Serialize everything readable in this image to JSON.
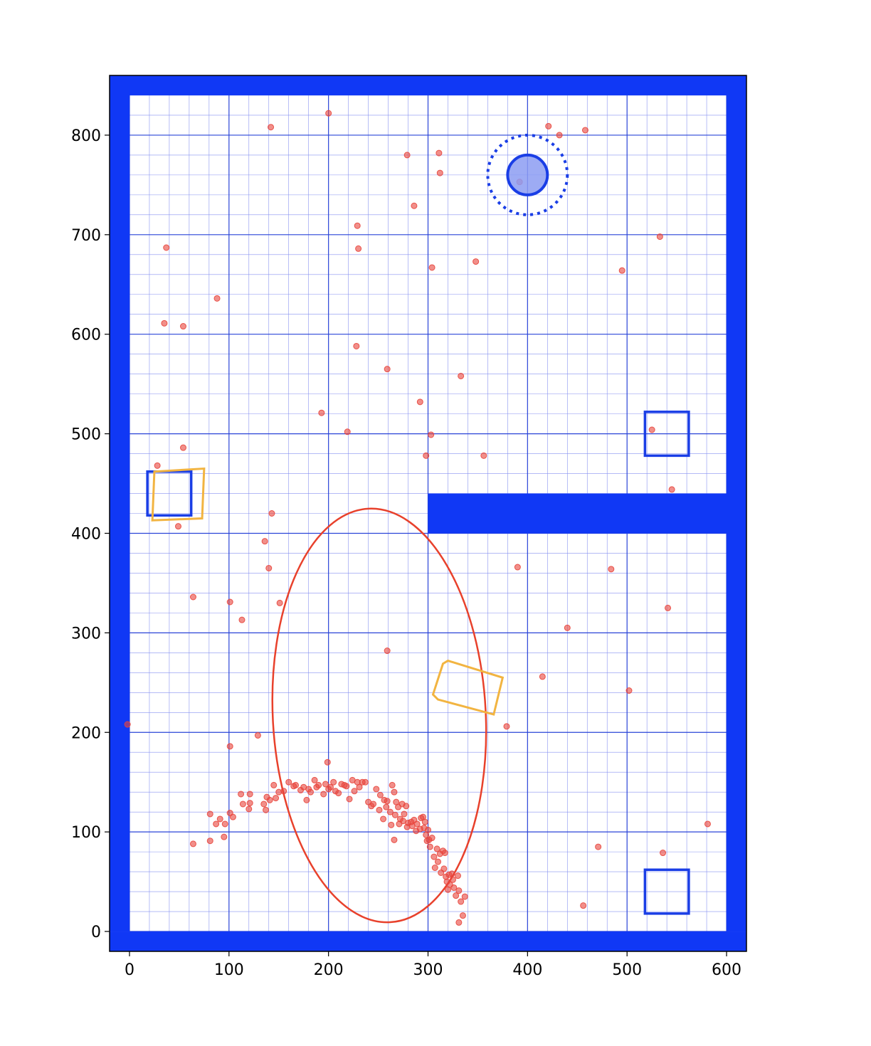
{
  "chart_data": {
    "type": "scatter",
    "title": "",
    "xlabel": "",
    "ylabel": "",
    "xlim": [
      -20,
      620
    ],
    "ylim": [
      -20,
      860
    ],
    "x_ticks": [
      0,
      100,
      200,
      300,
      400,
      500,
      600
    ],
    "y_ticks": [
      0,
      100,
      200,
      300,
      400,
      500,
      600,
      700,
      800
    ],
    "minor_grid_step": 20,
    "grid": true,
    "colors": {
      "wall": "#1038f5",
      "major_grid": "#2a44d8",
      "minor_grid": "#8892f0",
      "particles": "#e8453c",
      "ellipse": "#e8412c",
      "estimate_box": "#f2b441",
      "target_box": "#1a3ee6",
      "robot": "#1a3ee6",
      "robot_fill": "#8c9cf2"
    },
    "walls": [
      {
        "x0": -20,
        "y0": 0,
        "x1": 0,
        "y1": 860
      },
      {
        "x0": 600,
        "y0": 0,
        "x1": 620,
        "y1": 860
      },
      {
        "x0": -20,
        "y0": -20,
        "x1": 620,
        "y1": 0
      },
      {
        "x0": -20,
        "y0": 840,
        "x1": 620,
        "y1": 860
      },
      {
        "x0": 300,
        "y0": 400,
        "x1": 600,
        "y1": 440
      }
    ],
    "target_boxes": [
      {
        "x0": 18,
        "y0": 418,
        "x1": 62,
        "y1": 462
      },
      {
        "x0": 518,
        "y0": 478,
        "x1": 562,
        "y1": 522
      },
      {
        "x0": 518,
        "y0": 18,
        "x1": 562,
        "y1": 62
      }
    ],
    "estimate_boxes": [
      {
        "points": [
          [
            23,
            413
          ],
          [
            73,
            415
          ],
          [
            75,
            465
          ],
          [
            25,
            462
          ]
        ]
      },
      {
        "points": [
          [
            305,
            238
          ],
          [
            315,
            269
          ],
          [
            320,
            272
          ],
          [
            375,
            255
          ],
          [
            366,
            218
          ],
          [
            310,
            233
          ]
        ]
      }
    ],
    "robot": {
      "x": 400,
      "y": 760,
      "r": 20,
      "sensor_r": 40
    },
    "ellipse": {
      "cx": 251,
      "cy": 217,
      "rx": 107,
      "ry": 208,
      "angle_deg": -3
    },
    "particles": [
      [
        200,
        822
      ],
      [
        142,
        808
      ],
      [
        421,
        809
      ],
      [
        458,
        805
      ],
      [
        432,
        800
      ],
      [
        279,
        780
      ],
      [
        311,
        782
      ],
      [
        312,
        762
      ],
      [
        392,
        753
      ],
      [
        286,
        729
      ],
      [
        229,
        709
      ],
      [
        37,
        687
      ],
      [
        230,
        686
      ],
      [
        533,
        698
      ],
      [
        348,
        673
      ],
      [
        304,
        667
      ],
      [
        495,
        664
      ],
      [
        88,
        636
      ],
      [
        35,
        611
      ],
      [
        54,
        608
      ],
      [
        228,
        588
      ],
      [
        259,
        565
      ],
      [
        333,
        558
      ],
      [
        292,
        532
      ],
      [
        193,
        521
      ],
      [
        219,
        502
      ],
      [
        303,
        499
      ],
      [
        525,
        504
      ],
      [
        54,
        486
      ],
      [
        298,
        478
      ],
      [
        356,
        478
      ],
      [
        28,
        468
      ],
      [
        545,
        444
      ],
      [
        143,
        420
      ],
      [
        49,
        407
      ],
      [
        136,
        392
      ],
      [
        140,
        365
      ],
      [
        390,
        366
      ],
      [
        484,
        364
      ],
      [
        64,
        336
      ],
      [
        101,
        331
      ],
      [
        151,
        330
      ],
      [
        541,
        325
      ],
      [
        113,
        313
      ],
      [
        440,
        305
      ],
      [
        259,
        282
      ],
      [
        415,
        256
      ],
      [
        502,
        242
      ],
      [
        379,
        206
      ],
      [
        -2,
        208
      ],
      [
        129,
        197
      ],
      [
        101,
        186
      ],
      [
        199,
        170
      ],
      [
        160,
        150
      ],
      [
        167,
        147
      ],
      [
        175,
        145
      ],
      [
        180,
        143
      ],
      [
        186,
        152
      ],
      [
        190,
        147
      ],
      [
        197,
        148
      ],
      [
        202,
        145
      ],
      [
        207,
        141
      ],
      [
        213,
        148
      ],
      [
        218,
        146
      ],
      [
        224,
        152
      ],
      [
        229,
        150
      ],
      [
        234,
        150
      ],
      [
        240,
        130
      ],
      [
        245,
        128
      ],
      [
        248,
        143
      ],
      [
        252,
        137
      ],
      [
        256,
        132
      ],
      [
        258,
        125
      ],
      [
        262,
        120
      ],
      [
        264,
        147
      ],
      [
        266,
        140
      ],
      [
        268,
        130
      ],
      [
        270,
        125
      ],
      [
        272,
        113
      ],
      [
        274,
        128
      ],
      [
        276,
        118
      ],
      [
        278,
        126
      ],
      [
        280,
        109
      ],
      [
        283,
        110
      ],
      [
        286,
        112
      ],
      [
        289,
        108
      ],
      [
        292,
        103
      ],
      [
        295,
        115
      ],
      [
        297,
        110
      ],
      [
        298,
        97
      ],
      [
        299,
        91
      ],
      [
        300,
        102
      ],
      [
        302,
        85
      ],
      [
        304,
        94
      ],
      [
        306,
        75
      ],
      [
        309,
        83
      ],
      [
        310,
        70
      ],
      [
        312,
        78
      ],
      [
        315,
        81
      ],
      [
        316,
        63
      ],
      [
        318,
        55
      ],
      [
        319,
        50
      ],
      [
        320,
        42
      ],
      [
        322,
        47
      ],
      [
        324,
        58
      ],
      [
        326,
        44
      ],
      [
        328,
        36
      ],
      [
        330,
        56
      ],
      [
        331,
        41
      ],
      [
        333,
        30
      ],
      [
        335,
        16
      ],
      [
        337,
        35
      ],
      [
        331,
        9
      ],
      [
        150,
        140
      ],
      [
        145,
        147
      ],
      [
        141,
        132
      ],
      [
        138,
        135
      ],
      [
        135,
        128
      ],
      [
        121,
        138
      ],
      [
        121,
        129
      ],
      [
        112,
        138
      ],
      [
        114,
        128
      ],
      [
        120,
        123
      ],
      [
        137,
        122
      ],
      [
        104,
        115
      ],
      [
        101,
        119
      ],
      [
        91,
        113
      ],
      [
        87,
        108
      ],
      [
        96,
        108
      ],
      [
        81,
        118
      ],
      [
        64,
        88
      ],
      [
        81,
        91
      ],
      [
        95,
        95
      ],
      [
        266,
        92
      ],
      [
        182,
        140
      ],
      [
        188,
        145
      ],
      [
        195,
        138
      ],
      [
        200,
        143
      ],
      [
        205,
        150
      ],
      [
        210,
        139
      ],
      [
        216,
        147
      ],
      [
        221,
        133
      ],
      [
        226,
        141
      ],
      [
        231,
        145
      ],
      [
        237,
        150
      ],
      [
        243,
        126
      ],
      [
        251,
        122
      ],
      [
        255,
        113
      ],
      [
        259,
        131
      ],
      [
        263,
        107
      ],
      [
        267,
        117
      ],
      [
        271,
        108
      ],
      [
        275,
        111
      ],
      [
        279,
        105
      ],
      [
        284,
        106
      ],
      [
        288,
        101
      ],
      [
        293,
        114
      ],
      [
        296,
        104
      ],
      [
        301,
        92
      ],
      [
        307,
        64
      ],
      [
        313,
        59
      ],
      [
        317,
        79
      ],
      [
        321,
        57
      ],
      [
        325,
        52
      ],
      [
        471,
        85
      ],
      [
        536,
        79
      ],
      [
        581,
        108
      ],
      [
        456,
        26
      ],
      [
        178,
        132
      ],
      [
        172,
        142
      ],
      [
        165,
        146
      ],
      [
        155,
        141
      ],
      [
        147,
        134
      ]
    ]
  }
}
